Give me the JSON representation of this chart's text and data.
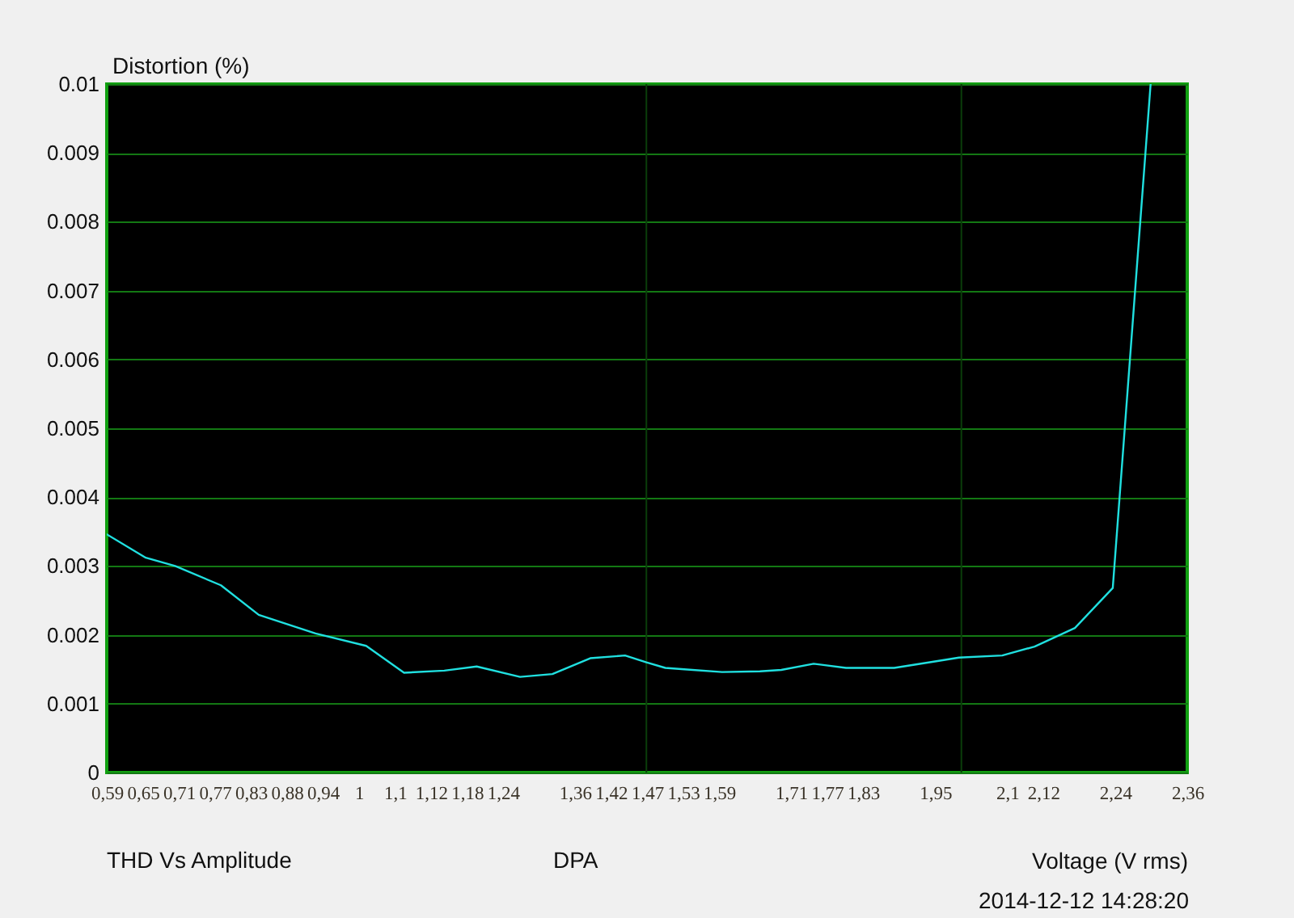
{
  "chart_data": {
    "type": "line",
    "xlabel": "Voltage (V rms)",
    "ylabel": "Distortion (%)",
    "annotations": [
      "THD Vs Amplitude",
      "DPA",
      "2014-12-12  14:28:20"
    ],
    "x": [
      0.59,
      0.654,
      0.702,
      0.777,
      0.839,
      0.932,
      1.015,
      1.077,
      1.143,
      1.196,
      1.267,
      1.32,
      1.382,
      1.439,
      1.474,
      1.505,
      1.536,
      1.598,
      1.66,
      1.695,
      1.748,
      1.801,
      1.88,
      1.951,
      1.986,
      2.057,
      2.11,
      2.176,
      2.238,
      2.3
    ],
    "values": [
      0.00346,
      0.00312,
      0.003,
      0.00272,
      0.00229,
      0.00202,
      0.00184,
      0.00145,
      0.00148,
      0.00154,
      0.00139,
      0.00143,
      0.00166,
      0.0017,
      0.0016,
      0.00152,
      0.0015,
      0.00146,
      0.00147,
      0.00149,
      0.00158,
      0.00152,
      0.00152,
      0.00162,
      0.00167,
      0.0017,
      0.00183,
      0.0021,
      0.00268,
      0.01
    ],
    "color": "#20e0e0",
    "xlim": [
      0.59,
      2.36
    ],
    "xticks": [
      {
        "value": 0.59,
        "label": "0,59"
      },
      {
        "value": 0.649,
        "label": "0,65"
      },
      {
        "value": 0.708,
        "label": "0,71"
      },
      {
        "value": 0.767,
        "label": "0,77"
      },
      {
        "value": 0.826,
        "label": "0,83"
      },
      {
        "value": 0.885,
        "label": "0,88"
      },
      {
        "value": 0.944,
        "label": "0,94"
      },
      {
        "value": 1.003,
        "label": "1"
      },
      {
        "value": 1.062,
        "label": "1,1"
      },
      {
        "value": 1.121,
        "label": "1,12"
      },
      {
        "value": 1.18,
        "label": "1,18"
      },
      {
        "value": 1.239,
        "label": "1,24"
      },
      {
        "value": 1.357,
        "label": "1,36"
      },
      {
        "value": 1.416,
        "label": "1,42"
      },
      {
        "value": 1.475,
        "label": "1,47"
      },
      {
        "value": 1.534,
        "label": "1,53"
      },
      {
        "value": 1.593,
        "label": "1,59"
      },
      {
        "value": 1.711,
        "label": "1,71"
      },
      {
        "value": 1.77,
        "label": "1,77"
      },
      {
        "value": 1.829,
        "label": "1,83"
      },
      {
        "value": 1.947,
        "label": "1,95"
      },
      {
        "value": 2.065,
        "label": "2,1"
      },
      {
        "value": 2.124,
        "label": "2,12"
      },
      {
        "value": 2.242,
        "label": "2,24"
      },
      {
        "value": 2.36,
        "label": "2,36"
      }
    ],
    "ylim": [
      0,
      0.01
    ],
    "yticks": [
      0,
      0.001,
      0.002,
      0.003,
      0.004,
      0.005,
      0.006,
      0.007,
      0.008,
      0.009,
      0.01
    ],
    "grid": "y",
    "ref_lines": [
      {
        "axis": "x",
        "value": 1.474,
        "color": "#0a3d0a"
      },
      {
        "axis": "x",
        "value": 1.99,
        "color": "#0a3d0a"
      }
    ]
  }
}
